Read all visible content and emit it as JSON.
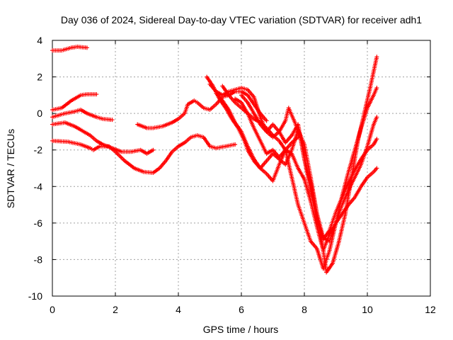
{
  "chart_data": {
    "type": "scatter",
    "title": "Day 036 of 2024, Sidereal Day-to-day VTEC variation (SDTVAR) for receiver adh1",
    "xlabel": "GPS time / hours",
    "ylabel": "SDTVAR / TECUs",
    "xlim": [
      0,
      12
    ],
    "ylim": [
      -10,
      4
    ],
    "xticks": [
      "0",
      "2",
      "4",
      "6",
      "8",
      "10",
      "12"
    ],
    "yticks": [
      "4",
      "2",
      "0",
      "-2",
      "-4",
      "-6",
      "-8",
      "-10"
    ],
    "grid": true,
    "legend": "none",
    "marker": "+",
    "color": "#ff0000",
    "series": [
      {
        "points": [
          [
            0.0,
            3.45
          ],
          [
            0.3,
            3.45
          ],
          [
            0.6,
            3.6
          ],
          [
            0.8,
            3.65
          ],
          [
            1.1,
            3.6
          ]
        ]
      },
      {
        "points": [
          [
            0.0,
            0.2
          ],
          [
            0.3,
            0.3
          ],
          [
            0.6,
            0.7
          ],
          [
            0.9,
            1.0
          ],
          [
            1.1,
            1.05
          ],
          [
            1.4,
            1.05
          ]
        ]
      },
      {
        "points": [
          [
            0.0,
            -0.2
          ],
          [
            0.4,
            0.0
          ],
          [
            0.7,
            0.1
          ],
          [
            0.9,
            0.2
          ],
          [
            1.1,
            0.0
          ],
          [
            1.4,
            -0.2
          ],
          [
            1.6,
            -0.3
          ],
          [
            1.9,
            -0.35
          ]
        ]
      },
      {
        "points": [
          [
            0.0,
            -0.6
          ],
          [
            0.4,
            -0.5
          ],
          [
            0.7,
            -0.7
          ],
          [
            0.9,
            -0.9
          ],
          [
            1.2,
            -1.2
          ],
          [
            1.4,
            -1.5
          ],
          [
            1.6,
            -1.7
          ],
          [
            1.9,
            -1.9
          ],
          [
            2.2,
            -2.1
          ],
          [
            2.5,
            -2.1
          ],
          [
            2.8,
            -2.0
          ],
          [
            3.0,
            -2.2
          ],
          [
            3.2,
            -2.0
          ]
        ]
      },
      {
        "points": [
          [
            0.0,
            -1.5
          ],
          [
            0.5,
            -1.55
          ],
          [
            0.9,
            -1.7
          ],
          [
            1.2,
            -1.9
          ],
          [
            1.3,
            -2.0
          ],
          [
            1.5,
            -1.8
          ],
          [
            1.8,
            -1.8
          ],
          [
            2.0,
            -2.1
          ],
          [
            2.3,
            -2.6
          ],
          [
            2.6,
            -3.0
          ],
          [
            2.9,
            -3.2
          ],
          [
            3.2,
            -3.25
          ],
          [
            3.4,
            -3.0
          ],
          [
            3.6,
            -2.6
          ],
          [
            3.8,
            -2.1
          ],
          [
            4.0,
            -1.8
          ],
          [
            4.2,
            -1.6
          ],
          [
            4.4,
            -1.3
          ],
          [
            4.6,
            -1.2
          ],
          [
            4.8,
            -1.3
          ],
          [
            5.0,
            -1.8
          ],
          [
            5.2,
            -1.9
          ],
          [
            5.5,
            -1.8
          ],
          [
            5.8,
            -1.7
          ]
        ]
      },
      {
        "points": [
          [
            2.7,
            -0.6
          ],
          [
            3.0,
            -0.8
          ],
          [
            3.2,
            -0.8
          ],
          [
            3.5,
            -0.7
          ],
          [
            3.8,
            -0.5
          ],
          [
            4.0,
            -0.3
          ],
          [
            4.2,
            0.0
          ],
          [
            4.3,
            0.5
          ],
          [
            4.5,
            0.7
          ],
          [
            4.6,
            0.6
          ],
          [
            4.8,
            0.3
          ],
          [
            5.0,
            0.2
          ],
          [
            5.2,
            0.5
          ],
          [
            5.4,
            0.9
          ],
          [
            5.6,
            1.0
          ],
          [
            5.8,
            1.2
          ],
          [
            6.0,
            1.2
          ],
          [
            6.2,
            1.0
          ],
          [
            6.4,
            0.5
          ],
          [
            6.6,
            0.0
          ],
          [
            6.8,
            -0.4
          ]
        ]
      },
      {
        "points": [
          [
            4.9,
            2.0
          ],
          [
            5.1,
            1.5
          ],
          [
            5.3,
            0.8
          ],
          [
            5.5,
            0.3
          ],
          [
            5.7,
            -0.3
          ],
          [
            5.9,
            -0.8
          ],
          [
            6.1,
            -1.5
          ],
          [
            6.2,
            -2.0
          ],
          [
            6.4,
            -2.6
          ],
          [
            6.6,
            -3.0
          ],
          [
            6.8,
            -3.3
          ],
          [
            7.0,
            -3.7
          ],
          [
            7.2,
            -2.8
          ],
          [
            7.4,
            -2.0
          ],
          [
            7.6,
            -1.6
          ],
          [
            7.8,
            -1.3
          ]
        ]
      },
      {
        "points": [
          [
            5.0,
            1.6
          ],
          [
            5.2,
            1.2
          ],
          [
            5.4,
            1.0
          ],
          [
            5.6,
            1.2
          ],
          [
            5.8,
            1.3
          ],
          [
            6.0,
            1.4
          ],
          [
            6.2,
            1.3
          ],
          [
            6.4,
            0.9
          ],
          [
            6.6,
            -0.2
          ],
          [
            6.8,
            -1.0
          ],
          [
            7.0,
            -1.3
          ],
          [
            7.2,
            -1.0
          ],
          [
            7.4,
            -0.4
          ],
          [
            7.5,
            0.3
          ],
          [
            7.7,
            -0.5
          ],
          [
            7.9,
            -1.5
          ],
          [
            8.0,
            -2.5
          ],
          [
            8.2,
            -3.8
          ],
          [
            8.4,
            -5.5
          ],
          [
            8.6,
            -7.5
          ],
          [
            8.7,
            -8.7
          ],
          [
            8.9,
            -8.2
          ],
          [
            9.1,
            -7.0
          ],
          [
            9.3,
            -5.5
          ],
          [
            9.5,
            -3.5
          ],
          [
            9.7,
            -1.5
          ],
          [
            9.9,
            0.0
          ],
          [
            10.1,
            1.5
          ],
          [
            10.3,
            3.1
          ]
        ]
      },
      {
        "points": [
          [
            5.4,
            1.5
          ],
          [
            5.6,
            1.0
          ],
          [
            5.8,
            0.6
          ],
          [
            6.0,
            0.3
          ],
          [
            6.2,
            0.0
          ],
          [
            6.4,
            -0.3
          ],
          [
            6.6,
            -0.5
          ],
          [
            6.8,
            -0.8
          ],
          [
            7.0,
            -1.2
          ],
          [
            7.2,
            -1.5
          ],
          [
            7.4,
            -2.0
          ],
          [
            7.6,
            -3.5
          ],
          [
            7.8,
            -5.0
          ],
          [
            8.0,
            -6.0
          ],
          [
            8.2,
            -7.0
          ],
          [
            8.4,
            -7.4
          ],
          [
            8.6,
            -8.5
          ],
          [
            8.8,
            -7.5
          ],
          [
            9.0,
            -6.0
          ],
          [
            9.2,
            -4.5
          ],
          [
            9.4,
            -3.2
          ],
          [
            9.6,
            -2.0
          ],
          [
            9.8,
            -0.8
          ],
          [
            10.0,
            0.3
          ],
          [
            10.2,
            1.0
          ],
          [
            10.3,
            1.4
          ]
        ]
      },
      {
        "points": [
          [
            5.2,
            1.1
          ],
          [
            5.4,
            0.7
          ],
          [
            5.6,
            0.2
          ],
          [
            5.8,
            -0.5
          ],
          [
            6.0,
            -1.0
          ],
          [
            6.2,
            -1.8
          ],
          [
            6.4,
            -2.5
          ],
          [
            6.6,
            -3.0
          ],
          [
            6.8,
            -2.6
          ],
          [
            7.0,
            -2.2
          ],
          [
            7.2,
            -2.5
          ],
          [
            7.4,
            -2.8
          ],
          [
            7.6,
            -2.0
          ],
          [
            7.8,
            -0.9
          ],
          [
            8.0,
            -1.7
          ],
          [
            8.2,
            -3.5
          ],
          [
            8.4,
            -5.5
          ],
          [
            8.6,
            -6.8
          ],
          [
            8.8,
            -7.0
          ],
          [
            9.0,
            -6.0
          ],
          [
            9.2,
            -5.0
          ],
          [
            9.4,
            -4.2
          ],
          [
            9.6,
            -3.5
          ],
          [
            9.8,
            -2.8
          ],
          [
            10.0,
            -1.8
          ],
          [
            10.2,
            -0.6
          ],
          [
            10.3,
            -0.2
          ]
        ]
      },
      {
        "points": [
          [
            5.8,
            0.8
          ],
          [
            6.0,
            0.6
          ],
          [
            6.2,
            0.0
          ],
          [
            6.4,
            -0.8
          ],
          [
            6.6,
            -1.5
          ],
          [
            6.8,
            -2.2
          ],
          [
            7.0,
            -2.0
          ],
          [
            7.2,
            -2.4
          ],
          [
            7.4,
            -2.0
          ],
          [
            7.6,
            -2.2
          ],
          [
            7.8,
            -3.0
          ],
          [
            8.0,
            -3.6
          ],
          [
            8.2,
            -4.8
          ],
          [
            8.4,
            -6.2
          ],
          [
            8.6,
            -7.5
          ],
          [
            8.8,
            -6.6
          ],
          [
            9.0,
            -6.0
          ],
          [
            9.2,
            -5.5
          ],
          [
            9.4,
            -5.0
          ],
          [
            9.6,
            -4.6
          ],
          [
            9.8,
            -4.0
          ],
          [
            10.0,
            -3.5
          ],
          [
            10.2,
            -3.2
          ],
          [
            10.3,
            -3.0
          ]
        ]
      },
      {
        "points": [
          [
            6.0,
            1.0
          ],
          [
            6.2,
            0.6
          ],
          [
            6.4,
            0.0
          ],
          [
            6.6,
            -0.6
          ],
          [
            6.8,
            -1.0
          ],
          [
            7.0,
            -0.6
          ],
          [
            7.2,
            -1.0
          ],
          [
            7.4,
            -1.6
          ],
          [
            7.6,
            -1.2
          ],
          [
            7.8,
            -0.6
          ],
          [
            8.0,
            -2.5
          ],
          [
            8.2,
            -4.2
          ],
          [
            8.4,
            -5.8
          ],
          [
            8.6,
            -6.9
          ],
          [
            8.8,
            -6.4
          ],
          [
            9.0,
            -5.4
          ],
          [
            9.2,
            -4.6
          ],
          [
            9.4,
            -3.8
          ],
          [
            9.6,
            -3.1
          ],
          [
            9.8,
            -2.5
          ],
          [
            10.0,
            -2.0
          ],
          [
            10.2,
            -1.7
          ],
          [
            10.3,
            -1.4
          ]
        ]
      }
    ]
  }
}
